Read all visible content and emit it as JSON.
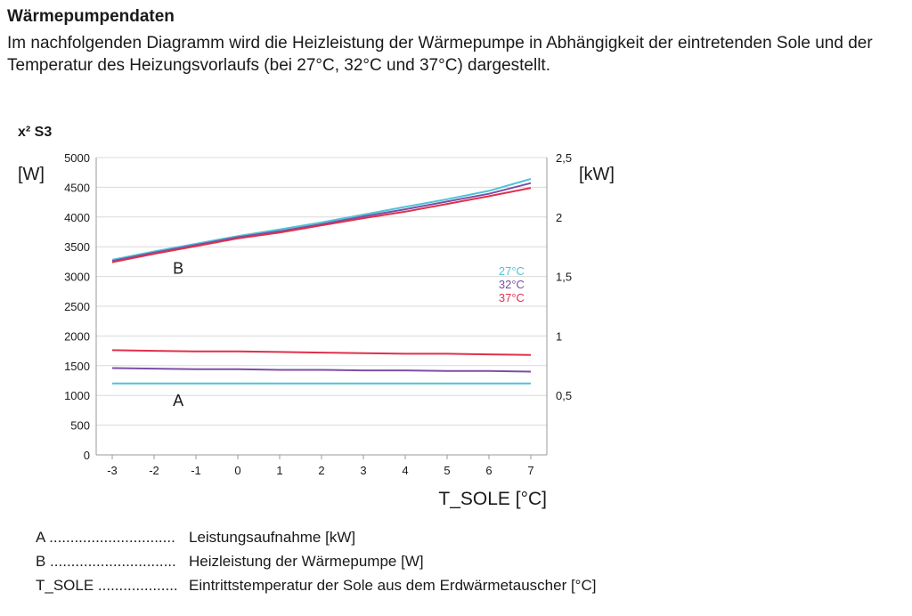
{
  "header": {
    "title": "Wärmepumpendaten",
    "intro": "Im nachfolgenden Diagramm wird die Heizleistung der Wärmepumpe in Abhängigkeit der eintretenden Sole und der Temperatur des Heizungsvorlaufs (bei 27°C, 32°C und 37°C) dargestellt."
  },
  "chart_data": {
    "type": "line",
    "title": "x² S3",
    "x": [
      -3,
      -2,
      -1,
      0,
      1,
      2,
      3,
      4,
      5,
      6,
      7
    ],
    "xlabel": "T_SOLE [°C]",
    "xlim": [
      -3,
      7
    ],
    "y_left_label": "[W]",
    "y_left_lim": [
      0,
      5000
    ],
    "y_left_ticks": [
      "0",
      "500",
      "1000",
      "1500",
      "2000",
      "2500",
      "3000",
      "3500",
      "4000",
      "4500",
      "5000"
    ],
    "y_right_label": "[kW]",
    "y_right_lim": [
      0,
      2.5
    ],
    "y_right_ticks": [
      "0,5",
      "1",
      "1,5",
      "2",
      "2,5"
    ],
    "grid": true,
    "curve_labels": {
      "B": "B",
      "A": "A"
    },
    "legend": [
      "27°C",
      "32°C",
      "37°C"
    ],
    "colors": {
      "27°C": "#4fc3d6",
      "32°C": "#7b4fa6",
      "37°C": "#e0304a"
    },
    "series": [
      {
        "name": "27°C",
        "curve": "B",
        "axis": "left",
        "values": [
          3280,
          3420,
          3550,
          3680,
          3790,
          3910,
          4040,
          4170,
          4300,
          4440,
          4640
        ]
      },
      {
        "name": "32°C",
        "curve": "B",
        "axis": "left",
        "values": [
          3260,
          3400,
          3530,
          3660,
          3760,
          3880,
          4010,
          4130,
          4260,
          4390,
          4570
        ]
      },
      {
        "name": "37°C",
        "curve": "B",
        "axis": "left",
        "values": [
          3240,
          3380,
          3510,
          3640,
          3740,
          3860,
          3980,
          4090,
          4220,
          4350,
          4490
        ]
      },
      {
        "name": "27°C",
        "curve": "A",
        "axis": "right",
        "values": [
          0.6,
          0.6,
          0.6,
          0.6,
          0.6,
          0.6,
          0.6,
          0.6,
          0.6,
          0.6,
          0.6
        ]
      },
      {
        "name": "32°C",
        "curve": "A",
        "axis": "right",
        "values": [
          0.73,
          0.725,
          0.72,
          0.72,
          0.715,
          0.715,
          0.71,
          0.71,
          0.705,
          0.705,
          0.7
        ]
      },
      {
        "name": "37°C",
        "curve": "A",
        "axis": "right",
        "values": [
          0.88,
          0.875,
          0.87,
          0.87,
          0.865,
          0.86,
          0.855,
          0.85,
          0.85,
          0.845,
          0.84
        ]
      }
    ]
  },
  "legend_table": [
    {
      "key": "A ..............................",
      "desc": "Leistungsaufnahme [kW]"
    },
    {
      "key": "B ..............................",
      "desc": "Heizleistung der Wärmepumpe [W]"
    },
    {
      "key": "T_SOLE ...................",
      "desc": "Eintrittstemperatur der Sole aus dem Erdwärmetauscher [°C]"
    }
  ]
}
